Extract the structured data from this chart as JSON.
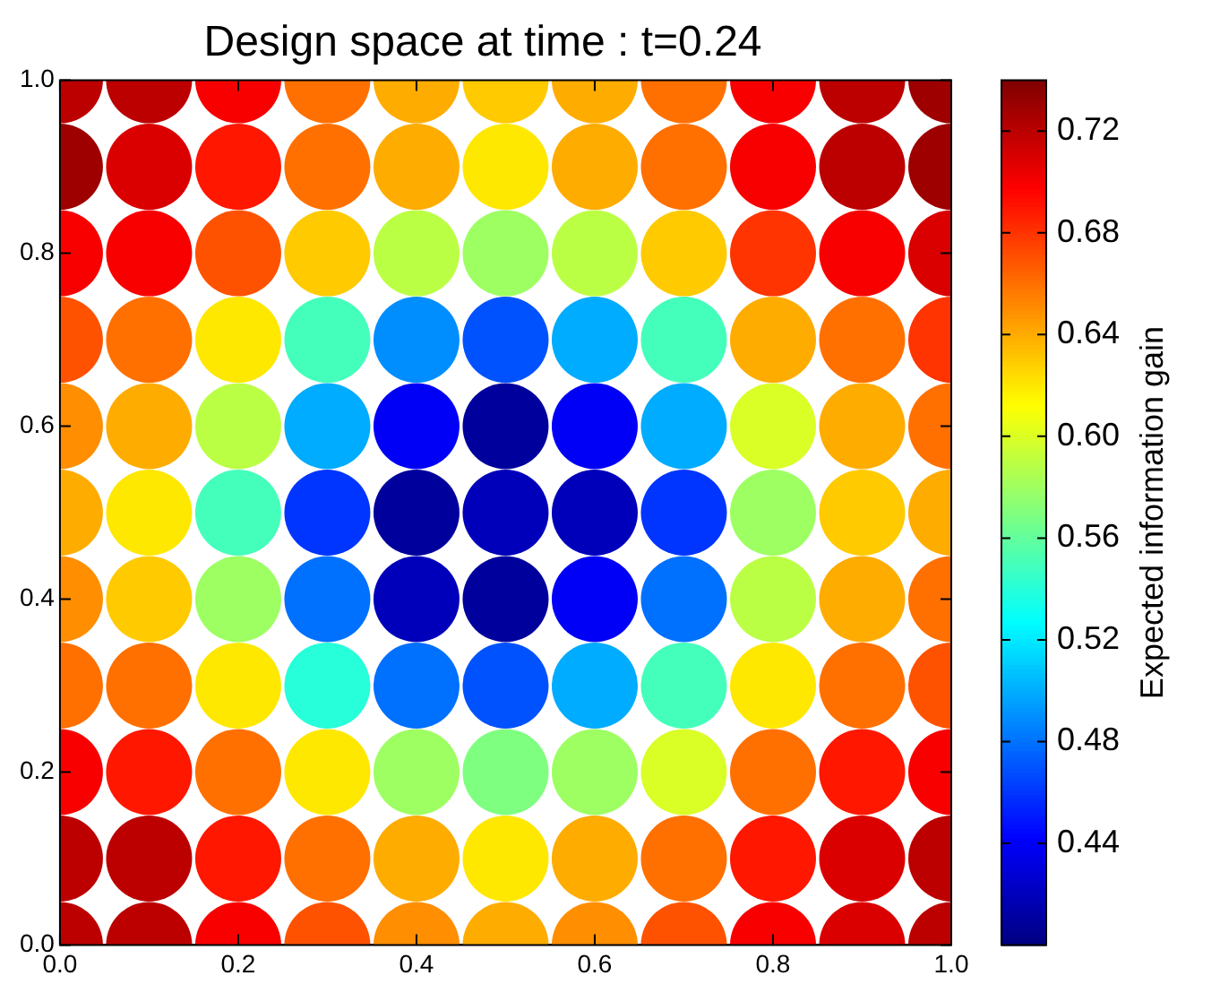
{
  "chart_data": {
    "type": "scatter",
    "title": "Design space at time : t=0.24",
    "clabel": "Expected information gain",
    "xlim": [
      0,
      1
    ],
    "ylim": [
      0,
      1
    ],
    "xticks": [
      {
        "value": 0,
        "label": "0.0"
      },
      {
        "value": 0.2,
        "label": "0.2"
      },
      {
        "value": 0.4,
        "label": "0.4"
      },
      {
        "value": 0.6,
        "label": "0.6"
      },
      {
        "value": 0.8,
        "label": "0.8"
      },
      {
        "value": 1,
        "label": "1.0"
      }
    ],
    "yticks": [
      {
        "value": 0,
        "label": "0.0"
      },
      {
        "value": 0.2,
        "label": "0.2"
      },
      {
        "value": 0.4,
        "label": "0.4"
      },
      {
        "value": 0.6,
        "label": "0.6"
      },
      {
        "value": 0.8,
        "label": "0.8"
      },
      {
        "value": 1,
        "label": "1.0"
      }
    ],
    "clim": [
      0.4,
      0.74
    ],
    "cticks": [
      0.44,
      0.48,
      0.52,
      0.56,
      {
        "value": 0.6,
        "label": "0.60"
      },
      0.64,
      0.68,
      0.72
    ],
    "marker": "circle",
    "grid": false,
    "legend": false,
    "series": [
      {
        "x": [
          0,
          0.1,
          0.2,
          0.3,
          0.4,
          0.5,
          0.6,
          0.7,
          0.8,
          0.9,
          1,
          0,
          0.1,
          0.2,
          0.3,
          0.4,
          0.5,
          0.6,
          0.7,
          0.8,
          0.9,
          1,
          0,
          0.1,
          0.2,
          0.3,
          0.4,
          0.5,
          0.6,
          0.7,
          0.8,
          0.9,
          1,
          0,
          0.1,
          0.2,
          0.3,
          0.4,
          0.5,
          0.6,
          0.7,
          0.8,
          0.9,
          1,
          0,
          0.1,
          0.2,
          0.3,
          0.4,
          0.5,
          0.6,
          0.7,
          0.8,
          0.9,
          1,
          0,
          0.1,
          0.2,
          0.3,
          0.4,
          0.5,
          0.6,
          0.7,
          0.8,
          0.9,
          1,
          0,
          0.1,
          0.2,
          0.3,
          0.4,
          0.5,
          0.6,
          0.7,
          0.8,
          0.9,
          1,
          0,
          0.1,
          0.2,
          0.3,
          0.4,
          0.5,
          0.6,
          0.7,
          0.8,
          0.9,
          1,
          0,
          0.1,
          0.2,
          0.3,
          0.4,
          0.5,
          0.6,
          0.7,
          0.8,
          0.9,
          1,
          0,
          0.1,
          0.2,
          0.3,
          0.4,
          0.5,
          0.6,
          0.7,
          0.8,
          0.9,
          1,
          0,
          0.1,
          0.2,
          0.3,
          0.4,
          0.5,
          0.6,
          0.7,
          0.8,
          0.9,
          1
        ],
        "values": [
          1,
          1,
          1,
          1,
          1,
          1,
          1,
          1,
          1,
          1,
          1,
          0.9,
          0.9,
          0.9,
          0.9,
          0.9,
          0.9,
          0.9,
          0.9,
          0.9,
          0.9,
          0.9,
          0.8,
          0.8,
          0.8,
          0.8,
          0.8,
          0.8,
          0.8,
          0.8,
          0.8,
          0.8,
          0.8,
          0.7,
          0.7,
          0.7,
          0.7,
          0.7,
          0.7,
          0.7,
          0.7,
          0.7,
          0.7,
          0.7,
          0.6,
          0.6,
          0.6,
          0.6,
          0.6,
          0.6,
          0.6,
          0.6,
          0.6,
          0.6,
          0.6,
          0.5,
          0.5,
          0.5,
          0.5,
          0.5,
          0.5,
          0.5,
          0.5,
          0.5,
          0.5,
          0.5,
          0.4,
          0.4,
          0.4,
          0.4,
          0.4,
          0.4,
          0.4,
          0.4,
          0.4,
          0.4,
          0.4,
          0.3,
          0.3,
          0.3,
          0.3,
          0.3,
          0.3,
          0.3,
          0.3,
          0.3,
          0.3,
          0.3,
          0.2,
          0.2,
          0.2,
          0.2,
          0.2,
          0.2,
          0.2,
          0.2,
          0.2,
          0.2,
          0.2,
          0.1,
          0.1,
          0.1,
          0.1,
          0.1,
          0.1,
          0.1,
          0.1,
          0.1,
          0.1,
          0.1,
          0,
          0,
          0,
          0,
          0,
          0,
          0,
          0,
          0,
          0,
          0
        ],
        "cvalues": [
          0.72,
          0.72,
          0.7,
          0.66,
          0.64,
          0.63,
          0.64,
          0.66,
          0.7,
          0.72,
          0.73,
          0.73,
          0.71,
          0.69,
          0.66,
          0.64,
          0.62,
          0.64,
          0.66,
          0.7,
          0.72,
          0.73,
          0.7,
          0.7,
          0.67,
          0.63,
          0.59,
          0.58,
          0.59,
          0.63,
          0.68,
          0.7,
          0.71,
          0.67,
          0.66,
          0.62,
          0.55,
          0.49,
          0.47,
          0.5,
          0.55,
          0.64,
          0.66,
          0.68,
          0.65,
          0.64,
          0.59,
          0.5,
          0.44,
          0.41,
          0.44,
          0.5,
          0.6,
          0.64,
          0.66,
          0.64,
          0.62,
          0.55,
          0.46,
          0.41,
          0.42,
          0.42,
          0.46,
          0.58,
          0.63,
          0.64,
          0.65,
          0.63,
          0.58,
          0.48,
          0.42,
          0.41,
          0.44,
          0.48,
          0.59,
          0.64,
          0.66,
          0.66,
          0.66,
          0.62,
          0.54,
          0.48,
          0.47,
          0.5,
          0.55,
          0.62,
          0.66,
          0.67,
          0.7,
          0.69,
          0.66,
          0.62,
          0.58,
          0.57,
          0.58,
          0.6,
          0.66,
          0.69,
          0.7,
          0.72,
          0.72,
          0.69,
          0.66,
          0.64,
          0.62,
          0.64,
          0.66,
          0.69,
          0.71,
          0.72,
          0.72,
          0.72,
          0.7,
          0.67,
          0.65,
          0.64,
          0.65,
          0.67,
          0.7,
          0.71,
          0.72
        ]
      }
    ]
  }
}
